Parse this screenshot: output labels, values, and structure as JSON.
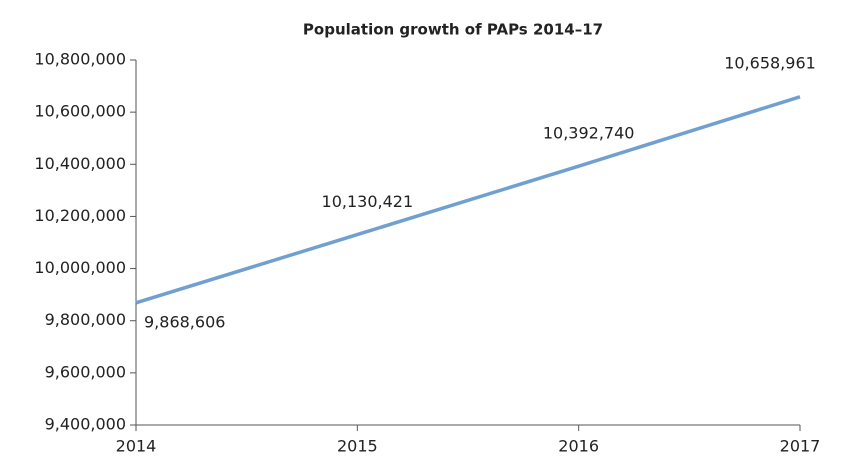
{
  "chart_data": {
    "type": "line",
    "title": "Population growth of PAPs 2014–17",
    "x": [
      2014,
      2015,
      2016,
      2017
    ],
    "series": [
      {
        "color": "#6fa0d0",
        "values": [
          9868606,
          10130421,
          10392740,
          10658961
        ],
        "value_labels": [
          "9,868,606",
          "10,130,421",
          "10,392,740",
          "10,658,961"
        ]
      }
    ],
    "xlim": [
      2014,
      2017
    ],
    "xticks": [
      2014,
      2015,
      2016,
      2017
    ],
    "ylim": [
      9400000,
      10800000
    ],
    "yticks": [
      {
        "value": 9400000,
        "label": "9,400,000"
      },
      {
        "value": 9600000,
        "label": "9,600,000"
      },
      {
        "value": 9800000,
        "label": "9,800,000"
      },
      {
        "value": 10000000,
        "label": "10,000,000"
      },
      {
        "value": 10200000,
        "label": "10,200,000"
      },
      {
        "value": 10400000,
        "label": "10,400,000"
      },
      {
        "value": 10600000,
        "label": "10,600,000"
      },
      {
        "value": 10800000,
        "label": "10,800,000"
      }
    ]
  }
}
